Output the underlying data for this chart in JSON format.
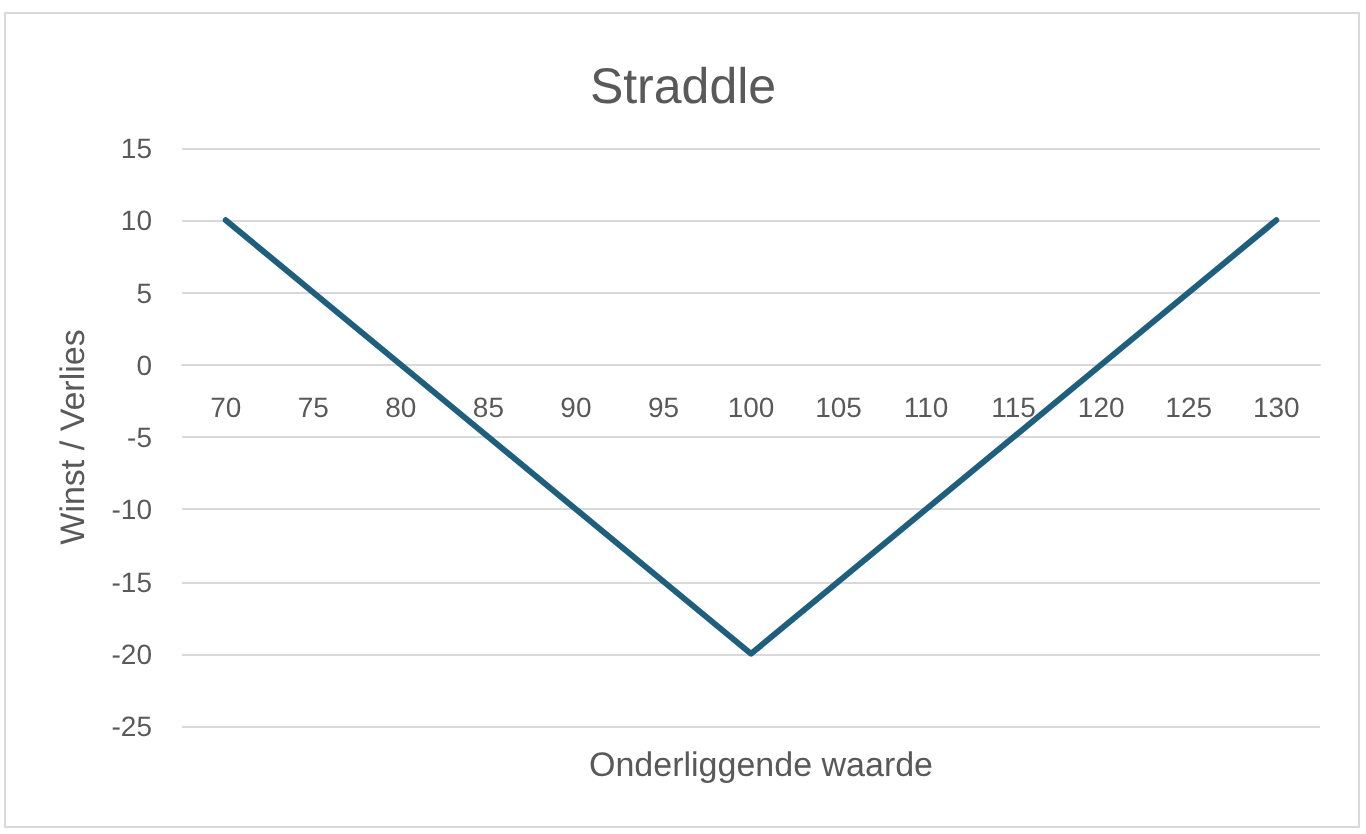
{
  "chart_data": {
    "type": "line",
    "title": "Straddle",
    "xlabel": "Onderliggende waarde",
    "ylabel": "Winst / Verlies",
    "categories": [
      "70",
      "75",
      "80",
      "85",
      "90",
      "95",
      "100",
      "105",
      "110",
      "115",
      "120",
      "125",
      "130"
    ],
    "values": [
      10,
      5,
      0,
      -5,
      -10,
      -15,
      -20,
      -15,
      -10,
      -5,
      0,
      5,
      10
    ],
    "color": "#1e5f7e",
    "ylim": [
      -25,
      15
    ],
    "yticks": [
      -25,
      -20,
      -15,
      -10,
      -5,
      0,
      5,
      10,
      15
    ],
    "grid": "y",
    "marker": "none"
  }
}
